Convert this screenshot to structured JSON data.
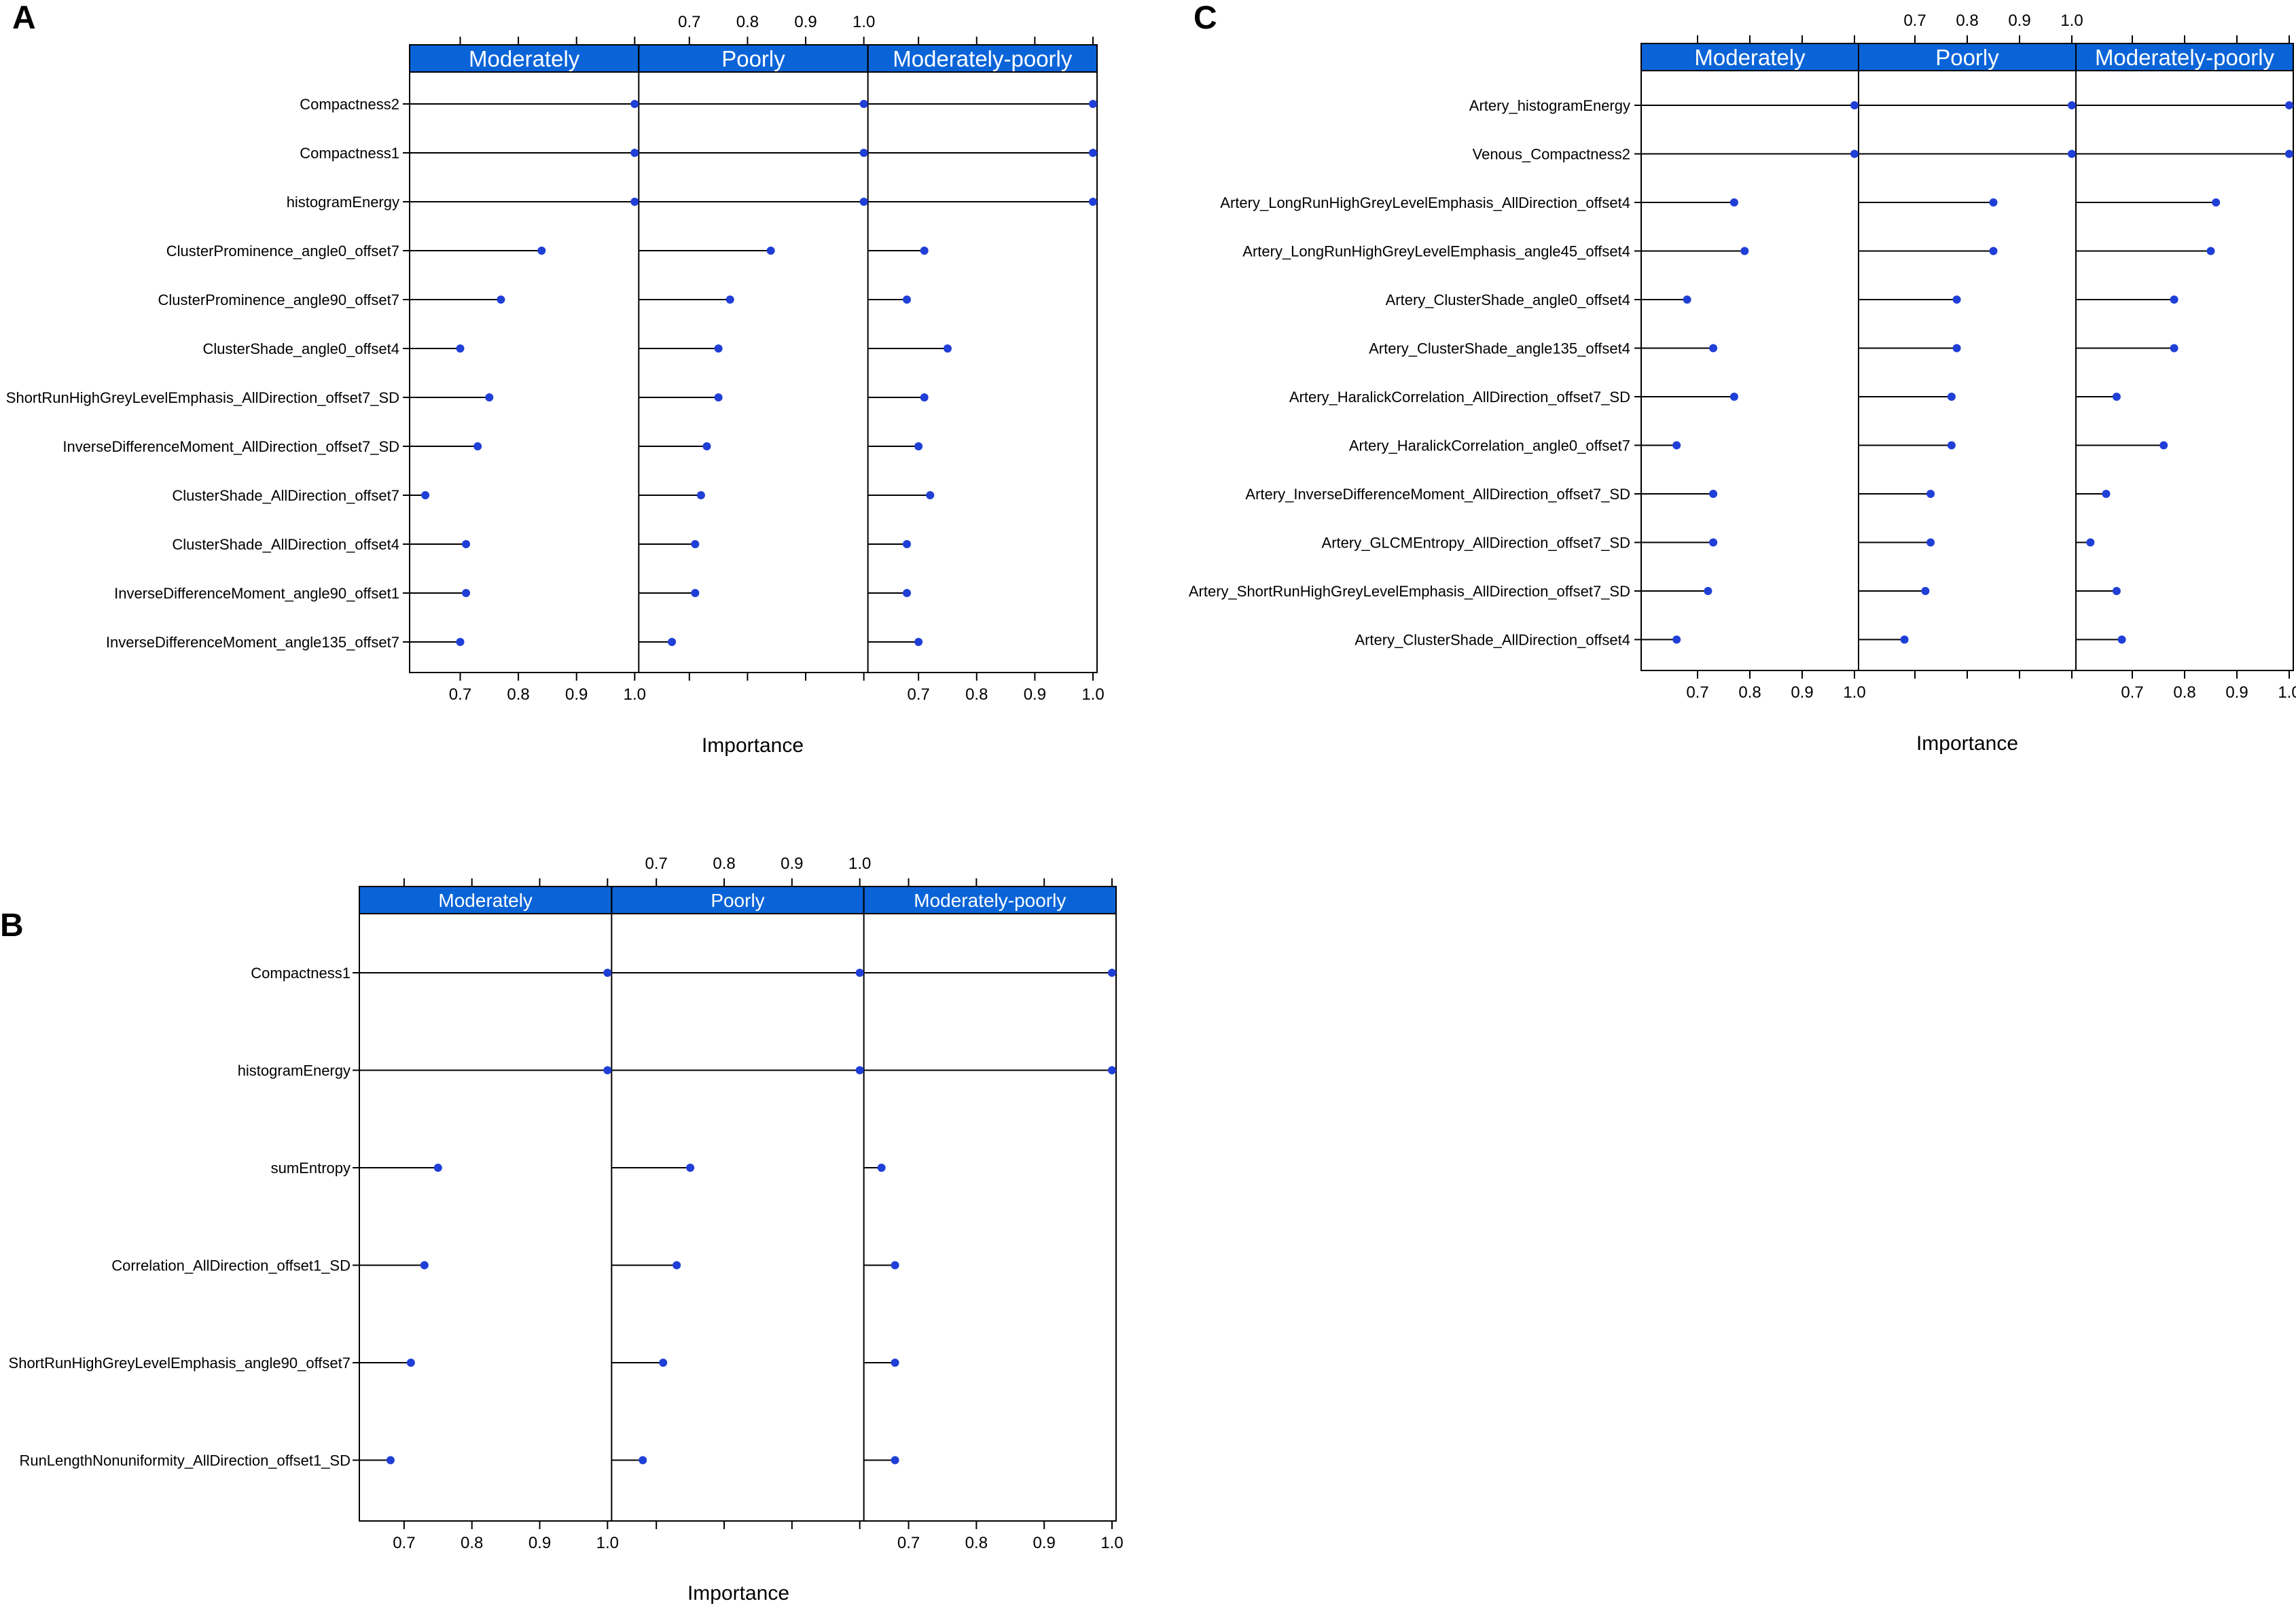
{
  "colors": {
    "strip": "#0a64d8",
    "strip_text": "#ffffff",
    "point": "#1f3fd6",
    "line": "#000000",
    "axis": "#000000"
  },
  "chart_data": [
    {
      "id": "A",
      "type": "dotplot",
      "panel_label": "A",
      "xlabel": "Importance",
      "xlim": [
        0.62,
        1.0
      ],
      "ticks": [
        "0.7",
        "0.8",
        "0.9",
        "1.0"
      ],
      "tick_values": [
        0.7,
        0.8,
        0.9,
        1.0
      ],
      "panels": [
        "Moderately",
        "Poorly",
        "Moderately-poorly"
      ],
      "features": [
        "Compactness2",
        "Compactness1",
        "histogramEnergy",
        "ClusterProminence_angle0_offset7",
        "ClusterProminence_angle90_offset7",
        "ClusterShade_angle0_offset4",
        "ShortRunHighGreyLevelEmphasis_AllDirection_offset7_SD",
        "InverseDifferenceMoment_AllDirection_offset7_SD",
        "ClusterShade_AllDirection_offset7",
        "ClusterShade_AllDirection_offset4",
        "InverseDifferenceMoment_angle90_offset1",
        "InverseDifferenceMoment_angle135_offset7"
      ],
      "series": [
        {
          "name": "Moderately",
          "values": [
            1.0,
            1.0,
            1.0,
            0.84,
            0.77,
            0.7,
            0.75,
            0.73,
            0.64,
            0.71,
            0.71,
            0.7
          ]
        },
        {
          "name": "Poorly",
          "values": [
            1.0,
            1.0,
            1.0,
            0.84,
            0.77,
            0.75,
            0.75,
            0.73,
            0.72,
            0.71,
            0.71,
            0.67
          ]
        },
        {
          "name": "Moderately-poorly",
          "values": [
            1.0,
            1.0,
            1.0,
            0.71,
            0.68,
            0.75,
            0.71,
            0.7,
            0.72,
            0.68,
            0.68,
            0.7
          ]
        }
      ]
    },
    {
      "id": "B",
      "type": "dotplot",
      "panel_label": "B",
      "xlabel": "Importance",
      "xlim": [
        0.64,
        1.0
      ],
      "ticks": [
        "0.7",
        "0.8",
        "0.9",
        "1.0"
      ],
      "tick_values": [
        0.7,
        0.8,
        0.9,
        1.0
      ],
      "panels": [
        "Moderately",
        "Poorly",
        "Moderately-poorly"
      ],
      "features": [
        "Compactness1",
        "histogramEnergy",
        "sumEntropy",
        "Correlation_AllDirection_offset1_SD",
        "ShortRunHighGreyLevelEmphasis_angle90_offset7",
        "RunLengthNonuniformity_AllDirection_offset1_SD"
      ],
      "series": [
        {
          "name": "Moderately",
          "values": [
            1.0,
            1.0,
            0.75,
            0.73,
            0.71,
            0.68
          ]
        },
        {
          "name": "Poorly",
          "values": [
            1.0,
            1.0,
            0.75,
            0.73,
            0.71,
            0.68
          ]
        },
        {
          "name": "Moderately-poorly",
          "values": [
            1.0,
            1.0,
            0.66,
            0.68,
            0.68,
            0.68
          ]
        }
      ]
    },
    {
      "id": "C",
      "type": "dotplot",
      "panel_label": "C",
      "xlabel": "Importance",
      "xlim": [
        0.6,
        1.0
      ],
      "ticks": [
        "0.7",
        "0.8",
        "0.9",
        "1.0"
      ],
      "tick_values": [
        0.7,
        0.8,
        0.9,
        1.0
      ],
      "panels": [
        "Moderately",
        "Poorly",
        "Moderately-poorly"
      ],
      "features": [
        "Artery_histogramEnergy",
        "Venous_Compactness2",
        "Artery_LongRunHighGreyLevelEmphasis_AllDirection_offset4",
        "Artery_LongRunHighGreyLevelEmphasis_angle45_offset4",
        "Artery_ClusterShade_angle0_offset4",
        "Artery_ClusterShade_angle135_offset4",
        "Artery_HaralickCorrelation_AllDirection_offset7_SD",
        "Artery_HaralickCorrelation_angle0_offset7",
        "Artery_InverseDifferenceMoment_AllDirection_offset7_SD",
        "Artery_GLCMEntropy_AllDirection_offset7_SD",
        "Artery_ShortRunHighGreyLevelEmphasis_AllDirection_offset7_SD",
        "Artery_ClusterShade_AllDirection_offset4"
      ],
      "series": [
        {
          "name": "Moderately",
          "values": [
            1.0,
            1.0,
            0.77,
            0.79,
            0.68,
            0.73,
            0.77,
            0.66,
            0.73,
            0.73,
            0.72,
            0.66
          ]
        },
        {
          "name": "Poorly",
          "values": [
            1.0,
            1.0,
            0.85,
            0.85,
            0.78,
            0.78,
            0.77,
            0.77,
            0.73,
            0.73,
            0.72,
            0.68
          ]
        },
        {
          "name": "Moderately-poorly",
          "values": [
            1.0,
            1.0,
            0.86,
            0.85,
            0.78,
            0.78,
            0.67,
            0.76,
            0.65,
            0.62,
            0.67,
            0.68
          ]
        }
      ]
    }
  ]
}
